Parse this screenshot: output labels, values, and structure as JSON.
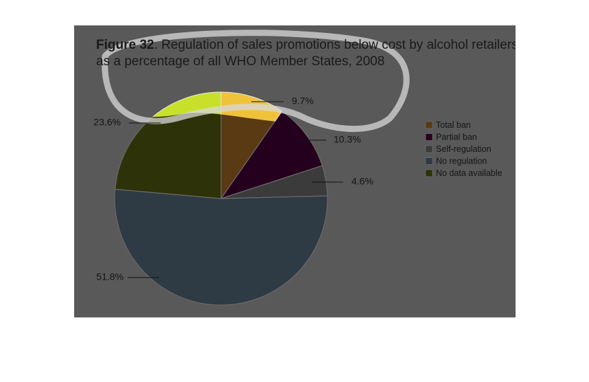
{
  "chart_data": {
    "type": "pie",
    "title_bold": "Figure 32",
    "title_rest": ". Regulation of sales promotions below cost by alcohol retailers,",
    "title_line2": "as a percentage of all WHO Member States, 2008",
    "slices": [
      {
        "name": "Total ban",
        "value": 9.7,
        "label": "9.7%",
        "color": "#5a3a12",
        "highlight_color": "#f0c23a"
      },
      {
        "name": "Partial ban",
        "value": 10.3,
        "label": "10.3%",
        "color": "#25001e"
      },
      {
        "name": "Self-regulation",
        "value": 4.6,
        "label": "4.6%",
        "color": "#3b3b3b"
      },
      {
        "name": "No regulation",
        "value": 51.8,
        "label": "51.8%",
        "color": "#2e3a44"
      },
      {
        "name": "No data available",
        "value": 23.6,
        "label": "23.6%",
        "color": "#2e3208",
        "highlight_color": "#c8e028"
      }
    ],
    "legend_position": "right"
  }
}
